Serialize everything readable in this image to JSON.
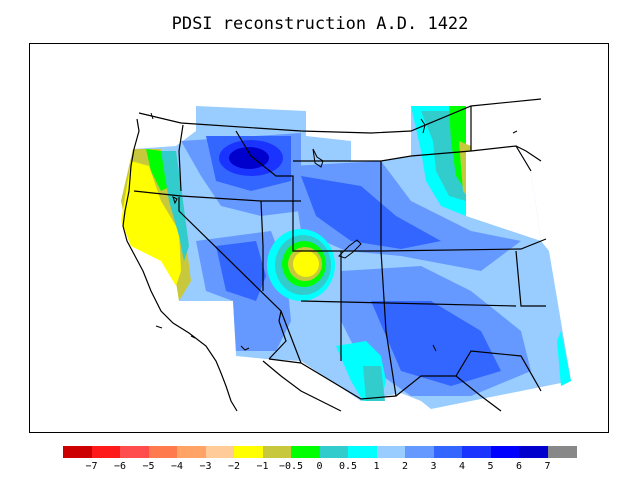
{
  "title": "PDSI reconstruction A.D. 1422",
  "colorbar": {
    "colors": [
      "#cc0000",
      "#ff1a1a",
      "#ff4d4d",
      "#ff7a4d",
      "#ffa366",
      "#ffcc99",
      "#ffff00",
      "#c8c83c",
      "#00ff00",
      "#33cccc",
      "#00ffff",
      "#99ccff",
      "#6699ff",
      "#3366ff",
      "#1a33ff",
      "#0000ff",
      "#0000cc",
      "#888888"
    ],
    "tick_labels": [
      "−7",
      "−6",
      "−5",
      "−4",
      "−3",
      "−2",
      "−1",
      "−0.5",
      "0",
      "0.5",
      "1",
      "2",
      "3",
      "4",
      "5",
      "6",
      "7"
    ]
  },
  "regions": {
    "dry_core": {
      "label_value": "-1",
      "color": "#ffff00"
    },
    "wet_core": {
      "label_value": "6",
      "color": "#0000cc"
    }
  }
}
